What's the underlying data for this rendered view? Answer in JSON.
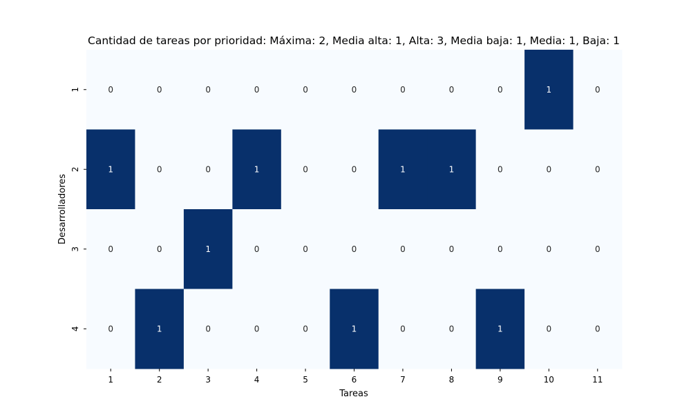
{
  "chart_data": {
    "type": "heatmap",
    "title": "Cantidad de tareas por prioridad: Máxima: 2, Media alta: 1, Alta: 3, Media baja: 1, Media: 1, Baja: 1",
    "xlabel": "Tareas",
    "ylabel": "Desarrolladores",
    "x_categories": [
      "1",
      "2",
      "3",
      "4",
      "5",
      "6",
      "7",
      "8",
      "9",
      "10",
      "11"
    ],
    "y_categories": [
      "1",
      "2",
      "3",
      "4"
    ],
    "values": [
      [
        0,
        0,
        0,
        0,
        0,
        0,
        0,
        0,
        0,
        1,
        0
      ],
      [
        1,
        0,
        0,
        1,
        0,
        0,
        1,
        1,
        0,
        0,
        0
      ],
      [
        0,
        0,
        1,
        0,
        0,
        0,
        0,
        0,
        0,
        0,
        0
      ],
      [
        0,
        1,
        0,
        0,
        0,
        1,
        0,
        0,
        1,
        0,
        0
      ]
    ],
    "colormap": {
      "low": "#f7fbff",
      "high": "#08306b"
    },
    "annotations": true,
    "colorbar": false
  }
}
